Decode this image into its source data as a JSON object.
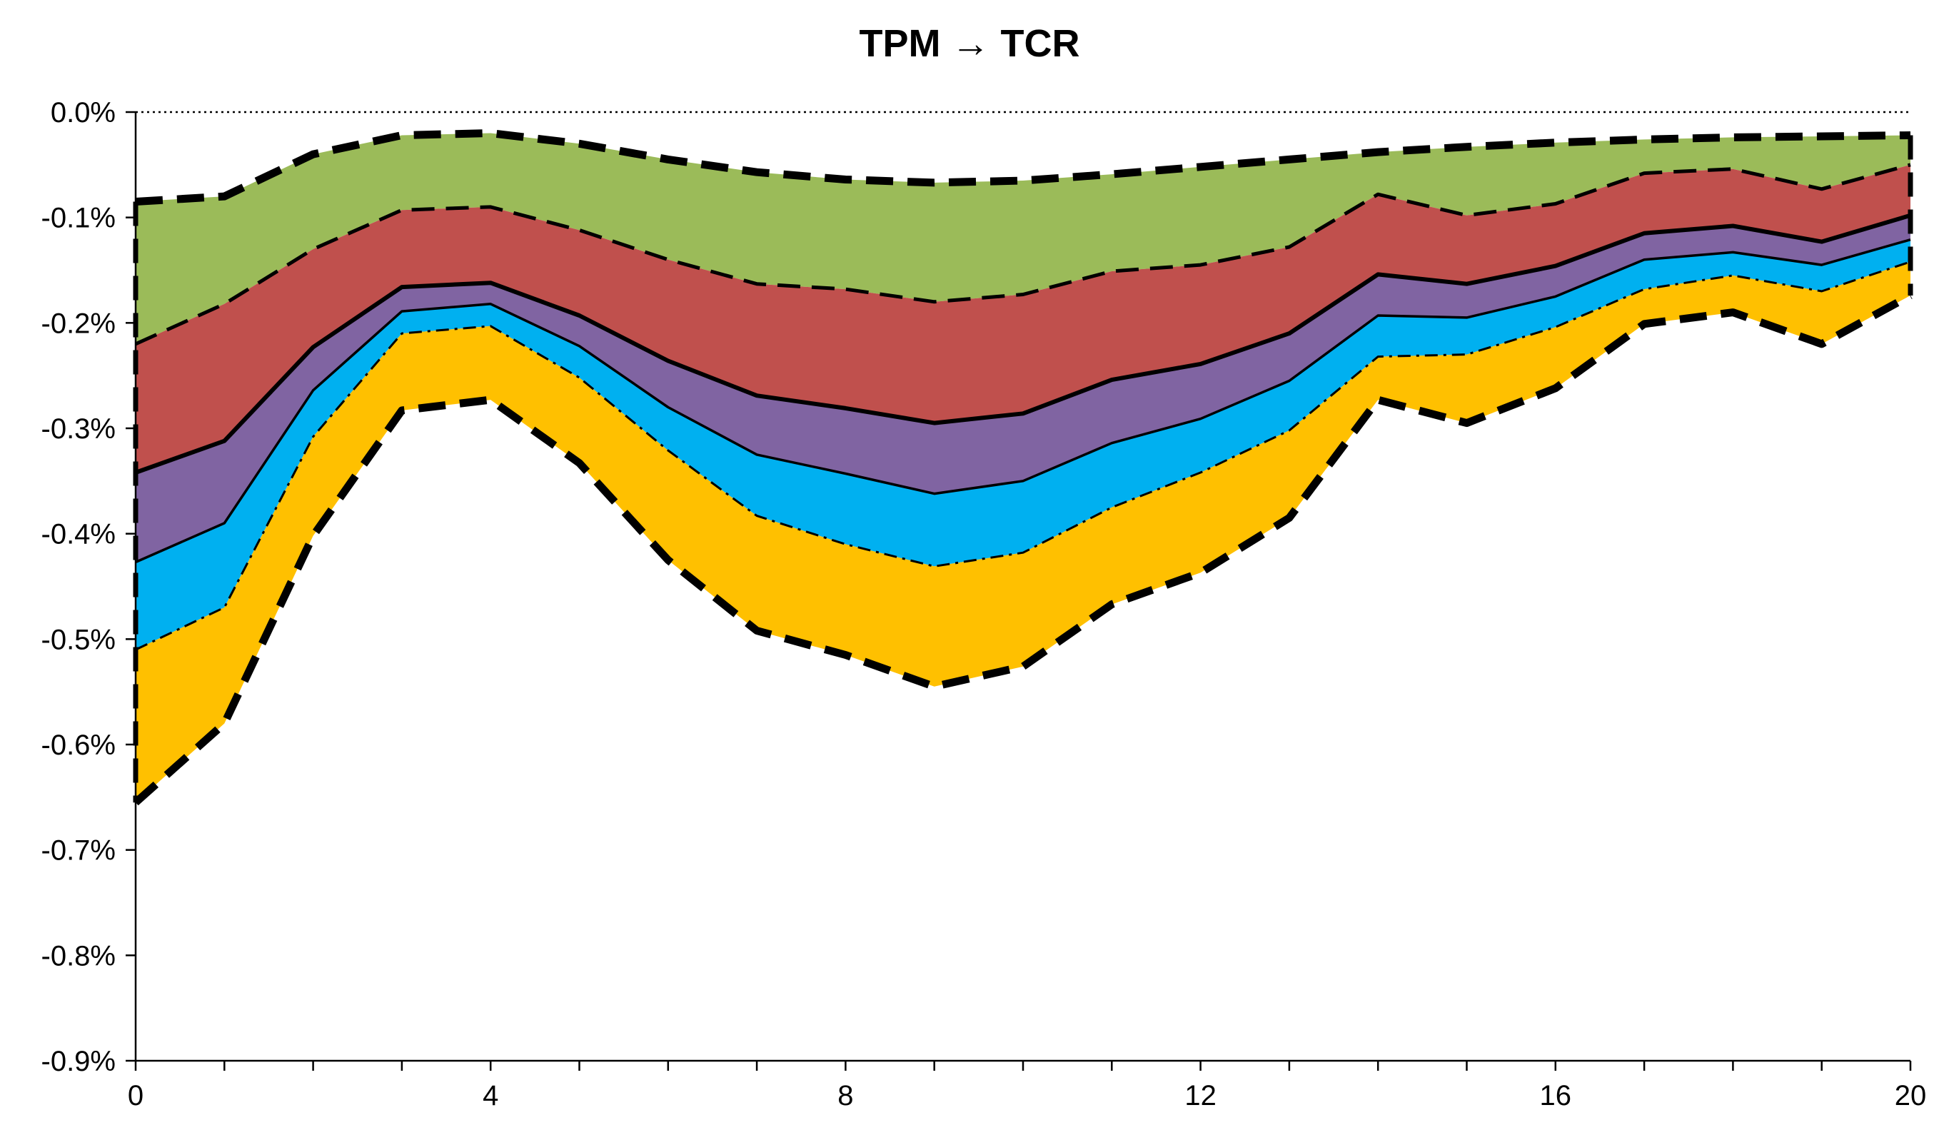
{
  "chart_data": {
    "type": "area",
    "title": "TPM → TCR",
    "x": [
      0,
      1,
      2,
      3,
      4,
      5,
      6,
      7,
      8,
      9,
      10,
      11,
      12,
      13,
      14,
      15,
      16,
      17,
      18,
      19,
      20
    ],
    "xticks": [
      0,
      4,
      8,
      12,
      16,
      20
    ],
    "xlim": [
      0,
      20
    ],
    "ylim": [
      -0.9,
      0.0
    ],
    "yticks": [
      0.0,
      -0.1,
      -0.2,
      -0.3,
      -0.4,
      -0.5,
      -0.6,
      -0.7,
      -0.8,
      -0.9
    ],
    "ytick_labels": [
      "0.0%",
      "-0.1%",
      "-0.2%",
      "-0.3%",
      "-0.4%",
      "-0.5%",
      "-0.6%",
      "-0.7%",
      "-0.8%",
      "-0.9%"
    ],
    "zero_line": "dotted",
    "grid": false,
    "legend": "none",
    "bands": [
      {
        "color": "#9BBB59",
        "upper_style": "heavy-dash",
        "lower_style": "dash"
      },
      {
        "color": "#C0504D",
        "upper_style": "dash",
        "lower_style": "solid"
      },
      {
        "color": "#8064A2",
        "upper_style": "solid",
        "lower_style": "thin-solid"
      },
      {
        "color": "#00B0F0",
        "upper_style": "thin-solid",
        "lower_style": "dash-dot"
      },
      {
        "color": "#FFC000",
        "upper_style": "dash-dot",
        "lower_style": "heavy-dash"
      }
    ],
    "boundaries": [
      {
        "name": "",
        "style": "heavy-dash",
        "values": [
          -0.085,
          -0.08,
          -0.04,
          -0.022,
          -0.02,
          -0.03,
          -0.045,
          -0.057,
          -0.064,
          -0.067,
          -0.065,
          -0.059,
          -0.052,
          -0.045,
          -0.038,
          -0.033,
          -0.029,
          -0.026,
          -0.024,
          -0.023,
          -0.022
        ]
      },
      {
        "name": "",
        "style": "dash",
        "values": [
          -0.22,
          -0.182,
          -0.13,
          -0.093,
          -0.09,
          -0.112,
          -0.14,
          -0.163,
          -0.168,
          -0.18,
          -0.173,
          -0.151,
          -0.145,
          -0.128,
          -0.078,
          -0.098,
          -0.087,
          -0.058,
          -0.054,
          -0.073,
          -0.05
        ]
      },
      {
        "name": "",
        "style": "solid",
        "values": [
          -0.342,
          -0.312,
          -0.223,
          -0.166,
          -0.162,
          -0.193,
          -0.236,
          -0.269,
          -0.281,
          -0.295,
          -0.286,
          -0.254,
          -0.239,
          -0.21,
          -0.154,
          -0.163,
          -0.146,
          -0.115,
          -0.108,
          -0.123,
          -0.098
        ]
      },
      {
        "name": "",
        "style": "thin-solid",
        "values": [
          -0.427,
          -0.39,
          -0.264,
          -0.189,
          -0.182,
          -0.222,
          -0.28,
          -0.325,
          -0.343,
          -0.362,
          -0.35,
          -0.314,
          -0.291,
          -0.255,
          -0.193,
          -0.195,
          -0.175,
          -0.14,
          -0.133,
          -0.145,
          -0.121
        ]
      },
      {
        "name": "",
        "style": "dash-dot",
        "values": [
          -0.51,
          -0.47,
          -0.308,
          -0.21,
          -0.203,
          -0.252,
          -0.321,
          -0.383,
          -0.41,
          -0.431,
          -0.418,
          -0.375,
          -0.342,
          -0.302,
          -0.232,
          -0.23,
          -0.204,
          -0.168,
          -0.155,
          -0.17,
          -0.142
        ]
      },
      {
        "name": "",
        "style": "heavy-dash",
        "values": [
          -0.655,
          -0.58,
          -0.402,
          -0.283,
          -0.273,
          -0.333,
          -0.425,
          -0.492,
          -0.515,
          -0.545,
          -0.526,
          -0.467,
          -0.437,
          -0.385,
          -0.273,
          -0.295,
          -0.262,
          -0.201,
          -0.19,
          -0.22,
          -0.174
        ]
      }
    ]
  }
}
